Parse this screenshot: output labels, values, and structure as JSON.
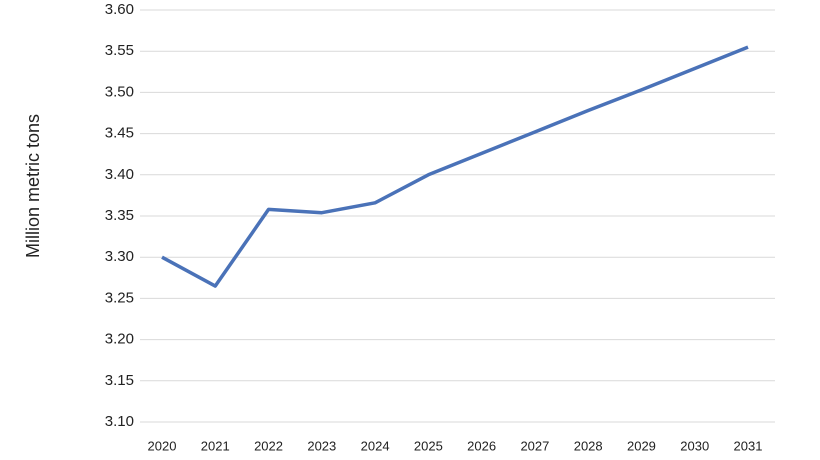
{
  "chart_data": {
    "type": "line",
    "y_label": "Million metric tons",
    "categories": [
      "2020",
      "2021",
      "2022",
      "2023",
      "2024",
      "2025",
      "2026",
      "2027",
      "2028",
      "2029",
      "2030",
      "2031"
    ],
    "series": [
      {
        "name": null,
        "color": "#4a72b8",
        "values": [
          3.3,
          3.265,
          3.358,
          3.354,
          3.366,
          3.4,
          3.426,
          3.452,
          3.478,
          3.503,
          3.529,
          3.555
        ]
      }
    ],
    "ylim": [
      3.1,
      3.6
    ],
    "yticks": [
      {
        "value": 3.1,
        "label": "3.10"
      },
      3.15,
      {
        "value": 3.2,
        "label": "3.20"
      },
      3.25,
      {
        "value": 3.3,
        "label": "3.30"
      },
      3.35,
      {
        "value": 3.4,
        "label": "3.40"
      },
      3.45,
      {
        "value": 3.5,
        "label": "3.50"
      },
      3.55,
      {
        "value": 3.6,
        "label": "3.60"
      }
    ],
    "grid": true
  }
}
